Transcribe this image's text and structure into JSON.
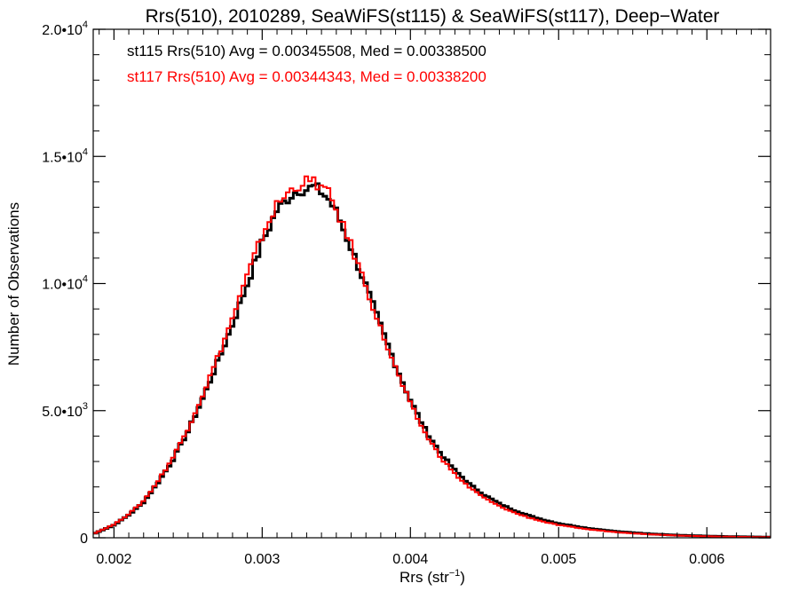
{
  "chart_data": {
    "type": "line",
    "title": "Rrs(510), 2010289, SeaWiFS(st115) & SeaWiFS(st117), Deep−Water",
    "xlabel": "Rrs (str",
    "xlabel_sup": "−1",
    "xlabel_end": ")",
    "ylabel": "Number of Observations",
    "xlim": [
      0.00186,
      0.00643
    ],
    "ylim": [
      0,
      20000
    ],
    "grid": false,
    "x_ticks": [
      {
        "value": 0.002,
        "label": "0.002"
      },
      {
        "value": 0.003,
        "label": "0.003"
      },
      {
        "value": 0.004,
        "label": "0.004"
      },
      {
        "value": 0.005,
        "label": "0.005"
      },
      {
        "value": 0.006,
        "label": "0.006"
      }
    ],
    "y_ticks": [
      {
        "value": 0,
        "label": "0",
        "sup": ""
      },
      {
        "value": 5000,
        "label": "5.0•10",
        "sup": "3"
      },
      {
        "value": 10000,
        "label": "1.0•10",
        "sup": "4"
      },
      {
        "value": 15000,
        "label": "1.5•10",
        "sup": "4"
      },
      {
        "value": 20000,
        "label": "2.0•10",
        "sup": "4"
      }
    ],
    "series": [
      {
        "name": "st115",
        "color": "#000000",
        "annotation": "st115 Rrs(510) Avg = 0.00345508, Med = 0.00338500",
        "x": [
          0.00186,
          0.0019,
          0.002,
          0.0021,
          0.0022,
          0.0023,
          0.0024,
          0.0025,
          0.0026,
          0.0027,
          0.0028,
          0.0029,
          0.003,
          0.0031,
          0.0032,
          0.00325,
          0.0033,
          0.00335,
          0.0034,
          0.00345,
          0.0035,
          0.0036,
          0.0037,
          0.0038,
          0.0039,
          0.004,
          0.0041,
          0.0042,
          0.0043,
          0.0044,
          0.0045,
          0.0046,
          0.0047,
          0.0048,
          0.0049,
          0.005,
          0.0052,
          0.0054,
          0.0056,
          0.0058,
          0.006,
          0.0062,
          0.00643
        ],
        "y": [
          150,
          250,
          500,
          900,
          1400,
          2200,
          3100,
          4200,
          5500,
          6900,
          8400,
          10000,
          11600,
          12900,
          13500,
          13700,
          13700,
          13800,
          13600,
          13300,
          12800,
          11400,
          9900,
          8300,
          6800,
          5400,
          4250,
          3350,
          2650,
          2100,
          1680,
          1340,
          1080,
          870,
          700,
          560,
          370,
          240,
          160,
          100,
          65,
          40,
          25
        ]
      },
      {
        "name": "st117",
        "color": "#ff0000",
        "annotation": "st117 Rrs(510) Avg = 0.00344343, Med = 0.00338200",
        "x": [
          0.00186,
          0.0019,
          0.002,
          0.0021,
          0.0022,
          0.0023,
          0.0024,
          0.0025,
          0.0026,
          0.0027,
          0.0028,
          0.0029,
          0.003,
          0.0031,
          0.0032,
          0.00325,
          0.0033,
          0.00335,
          0.0034,
          0.00345,
          0.0035,
          0.0036,
          0.0037,
          0.0038,
          0.0039,
          0.004,
          0.0041,
          0.0042,
          0.0043,
          0.0044,
          0.0045,
          0.0046,
          0.0047,
          0.0048,
          0.0049,
          0.005,
          0.0052,
          0.0054,
          0.0056,
          0.0058,
          0.006,
          0.0062,
          0.00643
        ],
        "y": [
          160,
          260,
          520,
          930,
          1450,
          2260,
          3180,
          4320,
          5650,
          7100,
          8650,
          10300,
          11900,
          13100,
          13700,
          13900,
          14000,
          14000,
          13800,
          13500,
          12900,
          11500,
          9900,
          8200,
          6650,
          5250,
          4100,
          3200,
          2500,
          1970,
          1560,
          1240,
          990,
          790,
          630,
          500,
          330,
          215,
          140,
          90,
          58,
          36,
          22
        ]
      }
    ]
  }
}
